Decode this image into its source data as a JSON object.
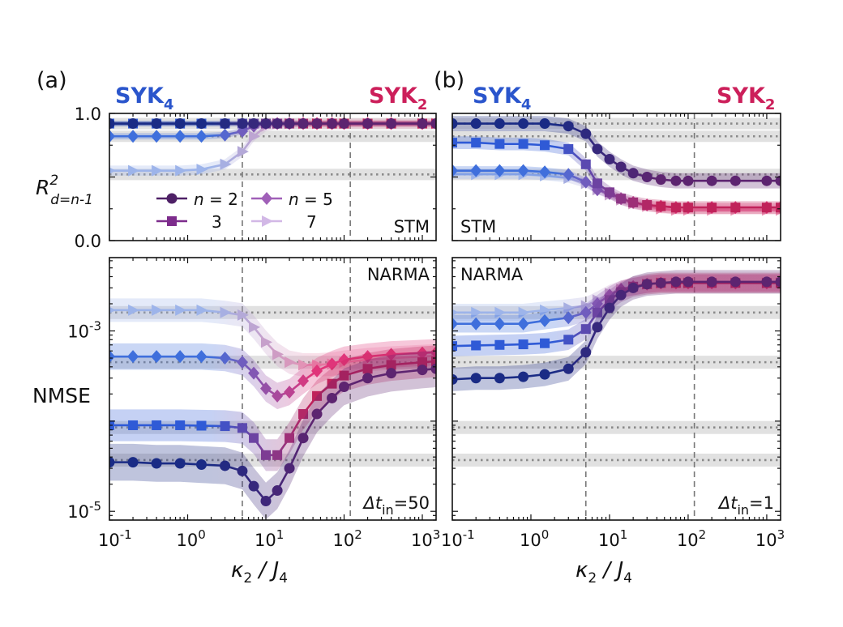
{
  "figure": {
    "panel_labels": [
      "(a)",
      "(b)"
    ],
    "top_left_label": {
      "main": "SYK",
      "sub": "4"
    },
    "top_right_label": {
      "main": "SYK",
      "sub": "2"
    },
    "colors": {
      "syk4": "#2a55cc",
      "syk2": "#cc1f5a",
      "n2_start": "#1a2b85",
      "n2_end": "#5d2470",
      "n3_start": "#2f5ad6",
      "n3_end": "#c0225a",
      "n5_start": "#3f6fdc",
      "n5_end": "#e0357a",
      "n7_start": "#9db4ea",
      "n7_end": "#e98fb0",
      "band_alpha": 0.28,
      "ref_band": "#c8c8c8"
    },
    "legend_title_prefix": "n =",
    "legend_entries": [
      {
        "label": "n = 2",
        "value": "2",
        "marker": "circle"
      },
      {
        "label": "3",
        "value": "3",
        "marker": "square"
      },
      {
        "label": "n = 5",
        "value": "5",
        "marker": "diamond"
      },
      {
        "label": "7",
        "value": "7",
        "marker": "triangle"
      }
    ]
  },
  "chart_data": [
    {
      "id": "a-top",
      "type": "line",
      "panel": "(a)",
      "task": "STM",
      "ylabel": "R²_{d=n-1}",
      "ylabel_main": "R",
      "ylabel_sup": "2",
      "ylabel_sub": "d=n-1",
      "yscale": "linear",
      "ylim": [
        0.0,
        1.0
      ],
      "yticks": [
        {
          "v": 0.0,
          "label": "0.0"
        },
        {
          "v": 0.5,
          "label": ""
        },
        {
          "v": 1.0,
          "label": "1.0"
        }
      ],
      "xscale": "log",
      "xlim": [
        0.1,
        1500
      ],
      "vlines": [
        5,
        120
      ],
      "ref_lines": [
        0.92,
        0.82,
        0.52
      ],
      "x": [
        0.1,
        0.2,
        0.4,
        0.8,
        1.5,
        3,
        5,
        7,
        10,
        14,
        20,
        30,
        45,
        70,
        100,
        200,
        400,
        1000,
        1500
      ],
      "series": [
        {
          "n": 2,
          "marker": "circle",
          "values": [
            0.92,
            0.92,
            0.92,
            0.92,
            0.92,
            0.92,
            0.92,
            0.92,
            0.92,
            0.92,
            0.92,
            0.92,
            0.92,
            0.92,
            0.92,
            0.92,
            0.92,
            0.92,
            0.92
          ],
          "err": 0.02
        },
        {
          "n": 3,
          "marker": "square",
          "values": [
            0.92,
            0.92,
            0.92,
            0.92,
            0.92,
            0.92,
            0.92,
            0.92,
            0.92,
            0.92,
            0.92,
            0.92,
            0.92,
            0.92,
            0.92,
            0.92,
            0.92,
            0.92,
            0.92
          ],
          "err": 0.02
        },
        {
          "n": 5,
          "marker": "diamond",
          "values": [
            0.82,
            0.82,
            0.82,
            0.82,
            0.82,
            0.83,
            0.86,
            0.9,
            0.92,
            0.92,
            0.92,
            0.92,
            0.92,
            0.92,
            0.92,
            0.92,
            0.92,
            0.92,
            0.92
          ],
          "err": 0.025
        },
        {
          "n": 7,
          "marker": "triangle",
          "values": [
            0.55,
            0.55,
            0.55,
            0.55,
            0.56,
            0.6,
            0.7,
            0.82,
            0.9,
            0.92,
            0.92,
            0.92,
            0.92,
            0.92,
            0.92,
            0.92,
            0.92,
            0.92,
            0.92
          ],
          "err": 0.04
        }
      ],
      "annotations": [
        "STM"
      ]
    },
    {
      "id": "b-top",
      "type": "line",
      "panel": "(b)",
      "task": "STM",
      "yscale": "linear",
      "ylim": [
        0.0,
        1.0
      ],
      "yticks": [
        {
          "v": 0.0,
          "label": ""
        },
        {
          "v": 0.5,
          "label": ""
        },
        {
          "v": 1.0,
          "label": ""
        }
      ],
      "xscale": "log",
      "xlim": [
        0.1,
        1500
      ],
      "vlines": [
        5,
        120
      ],
      "ref_lines": [
        0.92,
        0.82,
        0.52
      ],
      "x": [
        0.1,
        0.2,
        0.4,
        0.8,
        1.5,
        3,
        5,
        7,
        10,
        14,
        20,
        30,
        45,
        70,
        100,
        200,
        400,
        1000,
        1500
      ],
      "series": [
        {
          "n": 2,
          "marker": "circle",
          "values": [
            0.92,
            0.92,
            0.92,
            0.92,
            0.92,
            0.9,
            0.84,
            0.72,
            0.64,
            0.58,
            0.53,
            0.5,
            0.48,
            0.47,
            0.47,
            0.47,
            0.47,
            0.47,
            0.47
          ],
          "err": 0.06
        },
        {
          "n": 3,
          "marker": "square",
          "values": [
            0.77,
            0.77,
            0.76,
            0.76,
            0.75,
            0.72,
            0.6,
            0.45,
            0.38,
            0.33,
            0.3,
            0.28,
            0.27,
            0.26,
            0.26,
            0.26,
            0.26,
            0.26,
            0.26
          ],
          "err": 0.05
        },
        {
          "n": 5,
          "marker": "diamond",
          "values": [
            0.55,
            0.55,
            0.55,
            0.55,
            0.54,
            0.52,
            0.46,
            0.4,
            0.37,
            0.33,
            0.3,
            0.28,
            0.27,
            0.26,
            0.26,
            0.26,
            0.26,
            0.26,
            0.26
          ],
          "err": 0.035
        },
        {
          "n": 7,
          "marker": "triangle",
          "values": [
            0.52,
            0.52,
            0.52,
            0.52,
            0.51,
            0.49,
            0.45,
            0.4,
            0.36,
            0.32,
            0.29,
            0.27,
            0.25,
            0.24,
            0.24,
            0.24,
            0.24,
            0.24,
            0.24
          ],
          "err": 0.035
        }
      ],
      "annotations": [
        "STM"
      ]
    },
    {
      "id": "a-bottom",
      "type": "line",
      "panel": "(a)",
      "task": "NARMA",
      "ylabel": "NMSE",
      "yscale": "log",
      "ylim": [
        8e-06,
        0.0065
      ],
      "yticks": [
        {
          "v": 1e-05,
          "label": "10",
          "sup": "-5"
        },
        {
          "v": 0.001,
          "label": "10",
          "sup": "-3"
        }
      ],
      "xlabel": "κ2 / J4",
      "xscale": "log",
      "xlim": [
        0.1,
        1500
      ],
      "xticks": [
        {
          "v": 0.1,
          "label": "10",
          "sup": "-1"
        },
        {
          "v": 1,
          "label": "10",
          "sup": "0"
        },
        {
          "v": 10,
          "label": "10",
          "sup": "1"
        },
        {
          "v": 100,
          "label": "10",
          "sup": "2"
        },
        {
          "v": 1000,
          "label": "10",
          "sup": "3"
        }
      ],
      "vlines": [
        5,
        120
      ],
      "ref_lines": [
        0.0016,
        0.00045,
        8.5e-05,
        3.7e-05
      ],
      "x": [
        0.1,
        0.2,
        0.4,
        0.8,
        1.5,
        3,
        5,
        7,
        10,
        14,
        20,
        30,
        45,
        70,
        100,
        200,
        400,
        1000,
        1500
      ],
      "series": [
        {
          "n": 2,
          "marker": "circle",
          "values": [
            3.5e-05,
            3.5e-05,
            3.4e-05,
            3.4e-05,
            3.3e-05,
            3.2e-05,
            2.8e-05,
            1.9e-05,
            1.3e-05,
            1.7e-05,
            3e-05,
            6.5e-05,
            0.00012,
            0.00018,
            0.00024,
            0.0003,
            0.00034,
            0.00037,
            0.00038
          ],
          "err_factor": 1.6
        },
        {
          "n": 3,
          "marker": "square",
          "values": [
            9e-05,
            9e-05,
            9e-05,
            9e-05,
            8.9e-05,
            8.8e-05,
            8.4e-05,
            6.5e-05,
            4.2e-05,
            4.2e-05,
            6.5e-05,
            0.00012,
            0.00019,
            0.00026,
            0.00032,
            0.00038,
            0.00042,
            0.00045,
            0.00046
          ],
          "err_factor": 1.5
        },
        {
          "n": 5,
          "marker": "diamond",
          "values": [
            0.00052,
            0.00052,
            0.00052,
            0.00052,
            0.00052,
            0.0005,
            0.00045,
            0.00034,
            0.00023,
            0.00019,
            0.00021,
            0.00028,
            0.00036,
            0.00043,
            0.00048,
            0.00052,
            0.00055,
            0.00057,
            0.00058
          ],
          "err_factor": 1.4
        },
        {
          "n": 7,
          "marker": "triangle",
          "values": [
            0.0017,
            0.0017,
            0.0017,
            0.0017,
            0.0017,
            0.0016,
            0.0015,
            0.0011,
            0.00075,
            0.00055,
            0.00045,
            0.00042,
            0.00042,
            0.00043,
            0.00045,
            0.00048,
            0.0005,
            0.00052,
            0.00053
          ],
          "err_factor": 1.35
        }
      ],
      "annotations": [
        "NARMA",
        "Δt_in=50"
      ],
      "dt_label": {
        "pre": "Δt",
        "sub": "in",
        "post": "=50"
      }
    },
    {
      "id": "b-bottom",
      "type": "line",
      "panel": "(b)",
      "task": "NARMA",
      "yscale": "log",
      "ylim": [
        8e-06,
        0.0065
      ],
      "yticks": [
        {
          "v": 1e-05,
          "label": ""
        },
        {
          "v": 0.001,
          "label": ""
        }
      ],
      "xlabel": "κ2 / J4",
      "xscale": "log",
      "xlim": [
        0.1,
        1500
      ],
      "xticks": [
        {
          "v": 0.1,
          "label": "10",
          "sup": "-1"
        },
        {
          "v": 1,
          "label": "10",
          "sup": "0"
        },
        {
          "v": 10,
          "label": "10",
          "sup": "1"
        },
        {
          "v": 100,
          "label": "10",
          "sup": "2"
        },
        {
          "v": 1000,
          "label": "10",
          "sup": "3"
        }
      ],
      "vlines": [
        5,
        120
      ],
      "ref_lines": [
        0.0016,
        0.00045,
        8.5e-05,
        3.7e-05
      ],
      "x": [
        0.1,
        0.2,
        0.4,
        0.8,
        1.5,
        3,
        5,
        7,
        10,
        14,
        20,
        30,
        45,
        70,
        100,
        200,
        400,
        1000,
        1500
      ],
      "series": [
        {
          "n": 2,
          "marker": "circle",
          "values": [
            0.00029,
            0.0003,
            0.0003,
            0.00031,
            0.00033,
            0.00038,
            0.00058,
            0.0011,
            0.0018,
            0.0025,
            0.003,
            0.0033,
            0.0034,
            0.0035,
            0.0035,
            0.0035,
            0.0035,
            0.0035,
            0.0035
          ],
          "err_factor": 1.35
        },
        {
          "n": 3,
          "marker": "square",
          "values": [
            0.00068,
            0.00069,
            0.0007,
            0.00071,
            0.00073,
            0.0008,
            0.00105,
            0.0016,
            0.0022,
            0.0027,
            0.0031,
            0.0033,
            0.0034,
            0.0034,
            0.0034,
            0.0034,
            0.0034,
            0.0034,
            0.0034
          ],
          "err_factor": 1.3
        },
        {
          "n": 5,
          "marker": "diamond",
          "values": [
            0.0012,
            0.0012,
            0.0012,
            0.0012,
            0.0013,
            0.0014,
            0.0016,
            0.002,
            0.0025,
            0.0029,
            0.0031,
            0.0033,
            0.0034,
            0.0034,
            0.0034,
            0.0034,
            0.0034,
            0.0034,
            0.0034
          ],
          "err_factor": 1.25
        },
        {
          "n": 7,
          "marker": "triangle",
          "values": [
            0.0016,
            0.0016,
            0.0016,
            0.0016,
            0.0017,
            0.0018,
            0.0019,
            0.0022,
            0.0026,
            0.0029,
            0.0031,
            0.0033,
            0.0034,
            0.0034,
            0.0034,
            0.0034,
            0.0034,
            0.0034,
            0.0034
          ],
          "err_factor": 1.25
        }
      ],
      "annotations": [
        "NARMA",
        "Δt_in=1"
      ],
      "dt_label": {
        "pre": "Δt",
        "sub": "in",
        "post": "=1"
      }
    }
  ]
}
